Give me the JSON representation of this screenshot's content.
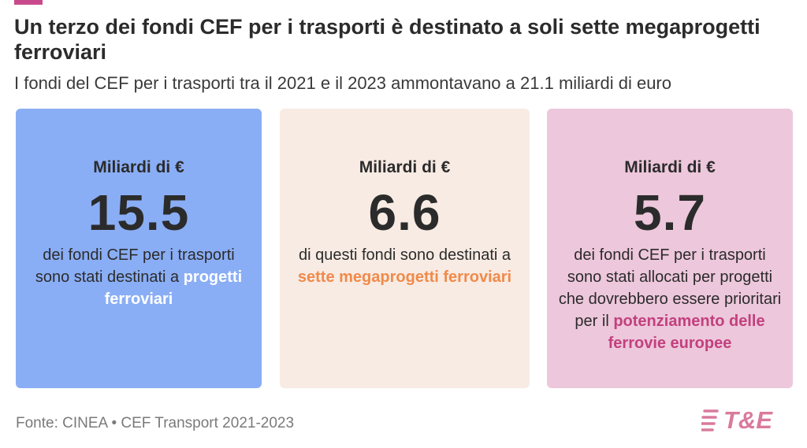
{
  "header": {
    "title": "Un terzo dei fondi CEF per i trasporti è destinato a soli sette megaprogetti ferroviari",
    "subtitle": "I fondi del CEF per i trasporti tra il 2021 e il 2023 ammontavano a 21.1 miliardi di euro"
  },
  "cards": [
    {
      "unit": "Miliardi di €",
      "value": "15.5",
      "text_before": "dei fondi CEF per i trasporti sono stati destinati a ",
      "highlight": "progetti ferroviari",
      "text_after": "",
      "background": "#8aaef5",
      "highlight_color": "#ffffff"
    },
    {
      "unit": "Miliardi di €",
      "value": "6.6",
      "text_before": "di questi fondi sono destinati a ",
      "highlight": "sette megaprogetti ferroviari",
      "text_after": "",
      "background": "#f7ebe3",
      "highlight_color": "#f08a4b"
    },
    {
      "unit": "Miliardi di €",
      "value": "5.7",
      "text_before": "dei fondi CEF per i trasporti sono stati allocati per progetti che dovrebbero essere prioritari per il ",
      "highlight": "potenziamento delle ferrovie europee",
      "text_after": "",
      "background": "#edc7db",
      "highlight_color": "#c2407e"
    }
  ],
  "footer": {
    "source": "Fonte: CINEA • CEF Transport 2021-2023",
    "logo_text": "T&E",
    "logo_color": "#d97a9c"
  },
  "accent_color": "#c94a8c"
}
